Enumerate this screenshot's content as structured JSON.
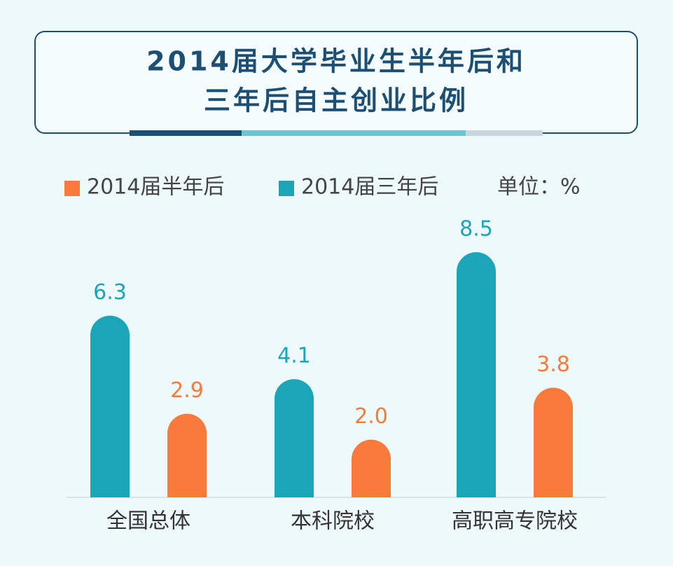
{
  "chart_data": {
    "type": "bar",
    "title": [
      "2014届大学毕业生半年后和",
      "三年后自主创业比例"
    ],
    "unit": "单位：%",
    "categories": [
      "全国总体",
      "本科院校",
      "高职高专院校"
    ],
    "series": [
      {
        "name": "2014届半年后",
        "color": "#f97a3b",
        "values": [
          2.9,
          2.0,
          3.8
        ],
        "value_labels": [
          "2.9",
          "2.0",
          "3.8"
        ]
      },
      {
        "name": "2014届三年后",
        "color": "#1aa5b8",
        "values": [
          6.3,
          4.1,
          8.5
        ]
      }
    ]
  }
}
